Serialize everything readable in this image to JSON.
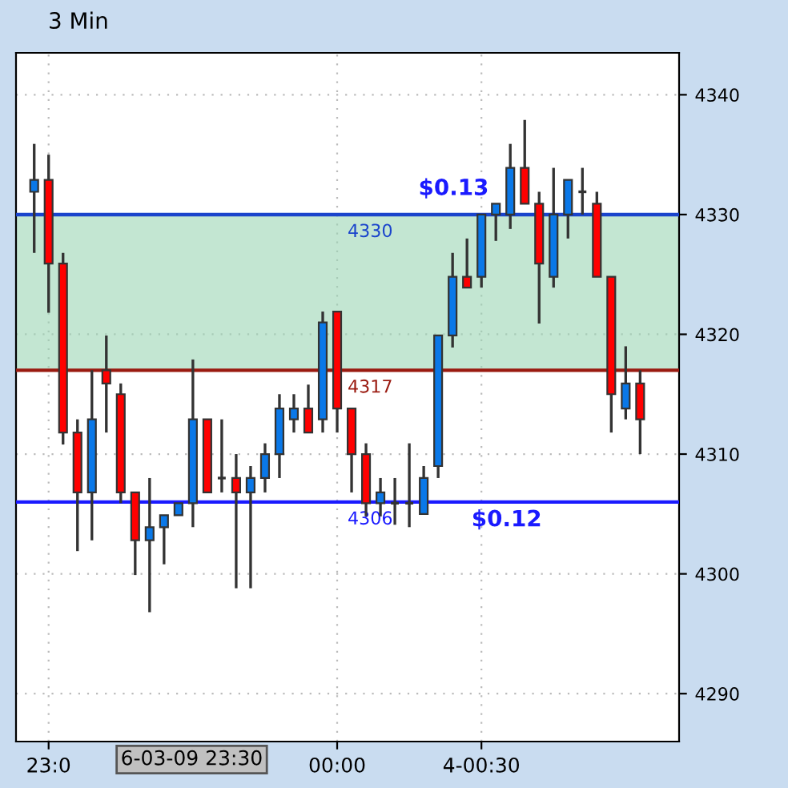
{
  "chart_data": {
    "type": "candlestick",
    "title": "3 Min",
    "categories": [
      null,
      "23:0",
      null,
      null,
      null,
      null,
      null,
      null,
      null,
      null,
      null,
      null,
      null,
      null,
      null,
      null,
      null,
      null,
      null,
      null,
      null,
      "00:00",
      null,
      null,
      null,
      null,
      null,
      null,
      null,
      null,
      null,
      "4-00:30",
      null,
      null,
      null,
      null,
      null,
      null,
      null,
      null,
      null,
      null,
      null
    ],
    "ohlc": [
      [
        4331.9,
        4335.9,
        4326.8,
        4332.9
      ],
      [
        4332.9,
        4335.0,
        4321.8,
        4325.9
      ],
      [
        4325.9,
        4326.8,
        4310.8,
        4311.8
      ],
      [
        4311.8,
        4312.9,
        4301.9,
        4306.8
      ],
      [
        4306.8,
        4317.0,
        4302.8,
        4312.9
      ],
      [
        4317.0,
        4319.9,
        4311.8,
        4315.9
      ],
      [
        4315.0,
        4315.9,
        4305.9,
        4306.8
      ],
      [
        4306.8,
        4306.8,
        4299.9,
        4302.8
      ],
      [
        4302.8,
        4308.0,
        4296.8,
        4303.9
      ],
      [
        4303.9,
        4304.9,
        4300.8,
        4304.9
      ],
      [
        4304.9,
        4305.9,
        4304.9,
        4305.9
      ],
      [
        4305.9,
        4317.9,
        4303.9,
        4312.9
      ],
      [
        4312.9,
        4312.9,
        4306.8,
        4306.8
      ],
      [
        4308.0,
        4312.9,
        4306.8,
        4308.0
      ],
      [
        4308.0,
        4310.0,
        4298.8,
        4306.8
      ],
      [
        4306.8,
        4309.0,
        4298.8,
        4308.0
      ],
      [
        4308.0,
        4310.9,
        4306.8,
        4310.0
      ],
      [
        4310.0,
        4315.0,
        4308.0,
        4313.8
      ],
      [
        4312.9,
        4315.0,
        4311.8,
        4313.8
      ],
      [
        4313.8,
        4315.8,
        4311.8,
        4311.8
      ],
      [
        4312.9,
        4321.9,
        4311.8,
        4321.0
      ],
      [
        4321.9,
        4321.9,
        4311.8,
        4313.8
      ],
      [
        4313.8,
        4313.8,
        4306.8,
        4310.0
      ],
      [
        4310.0,
        4310.9,
        4304.8,
        4305.9
      ],
      [
        4305.9,
        4308.0,
        4304.8,
        4306.8
      ],
      [
        4305.9,
        4308.0,
        4304.1,
        4305.9
      ],
      [
        4305.9,
        4310.9,
        4303.9,
        4305.9
      ],
      [
        4305.0,
        4309.0,
        4305.0,
        4308.0
      ],
      [
        4309.0,
        4319.9,
        4308.0,
        4319.9
      ],
      [
        4319.9,
        4326.8,
        4318.9,
        4324.8
      ],
      [
        4324.8,
        4328.0,
        4323.9,
        4323.9
      ],
      [
        4324.8,
        4330.0,
        4323.9,
        4330.0
      ],
      [
        4330.0,
        4330.9,
        4327.8,
        4330.9
      ],
      [
        4330.0,
        4335.9,
        4328.8,
        4333.9
      ],
      [
        4333.9,
        4337.9,
        4330.9,
        4330.9
      ],
      [
        4330.9,
        4331.9,
        4320.9,
        4325.9
      ],
      [
        4324.8,
        4333.9,
        4323.9,
        4330.0
      ],
      [
        4330.0,
        4332.9,
        4328.0,
        4332.9
      ],
      [
        4331.9,
        4333.9,
        4330.0,
        4331.9
      ],
      [
        4330.9,
        4331.9,
        4324.8,
        4324.8
      ],
      [
        4324.8,
        4324.8,
        4311.8,
        4315.0
      ],
      [
        4313.8,
        4319.0,
        4312.9,
        4315.9
      ],
      [
        4315.9,
        4317.0,
        4310.0,
        4312.9
      ]
    ],
    "colors": [
      "#0a78e8",
      "#ff0000",
      "#ff0000",
      "#ff0000",
      "#0a78e8",
      "#ff0000",
      "#ff0000",
      "#ff0000",
      "#0a78e8",
      "#0a78e8",
      "#0a78e8",
      "#0a78e8",
      "#ff0000",
      "#333333",
      "#ff0000",
      "#0a78e8",
      "#0a78e8",
      "#0a78e8",
      "#0a78e8",
      "#ff0000",
      "#0a78e8",
      "#ff0000",
      "#ff0000",
      "#ff0000",
      "#0a78e8",
      "#333333",
      "#333333",
      "#0a78e8",
      "#0a78e8",
      "#0a78e8",
      "#ff0000",
      "#0a78e8",
      "#0a78e8",
      "#0a78e8",
      "#ff0000",
      "#ff0000",
      "#0a78e8",
      "#0a78e8",
      "#333333",
      "#ff0000",
      "#ff0000",
      "#0a78e8",
      "#ff0000"
    ],
    "ylim": [
      4286,
      4343.5
    ],
    "yticks": [
      4290,
      4300,
      4310,
      4320,
      4330,
      4340
    ],
    "grid": true,
    "bands": [
      {
        "axis": "y",
        "from": 4317,
        "to": 4330,
        "color": "#9bd6b4"
      }
    ],
    "ref_lines": [
      {
        "axis": "y",
        "value": 4330,
        "label": "4330",
        "color": "#1a44cc"
      },
      {
        "axis": "y",
        "value": 4317,
        "label": "4317",
        "color": "#9a1a10"
      },
      {
        "axis": "y",
        "value": 4306,
        "label": "4306",
        "color": "#1a1aff"
      }
    ],
    "annotations": [
      {
        "text": "$0.13",
        "y": 4330.5
      },
      {
        "text": "$0.12",
        "y": 4306.5
      },
      "6-03-09 23:30"
    ]
  }
}
